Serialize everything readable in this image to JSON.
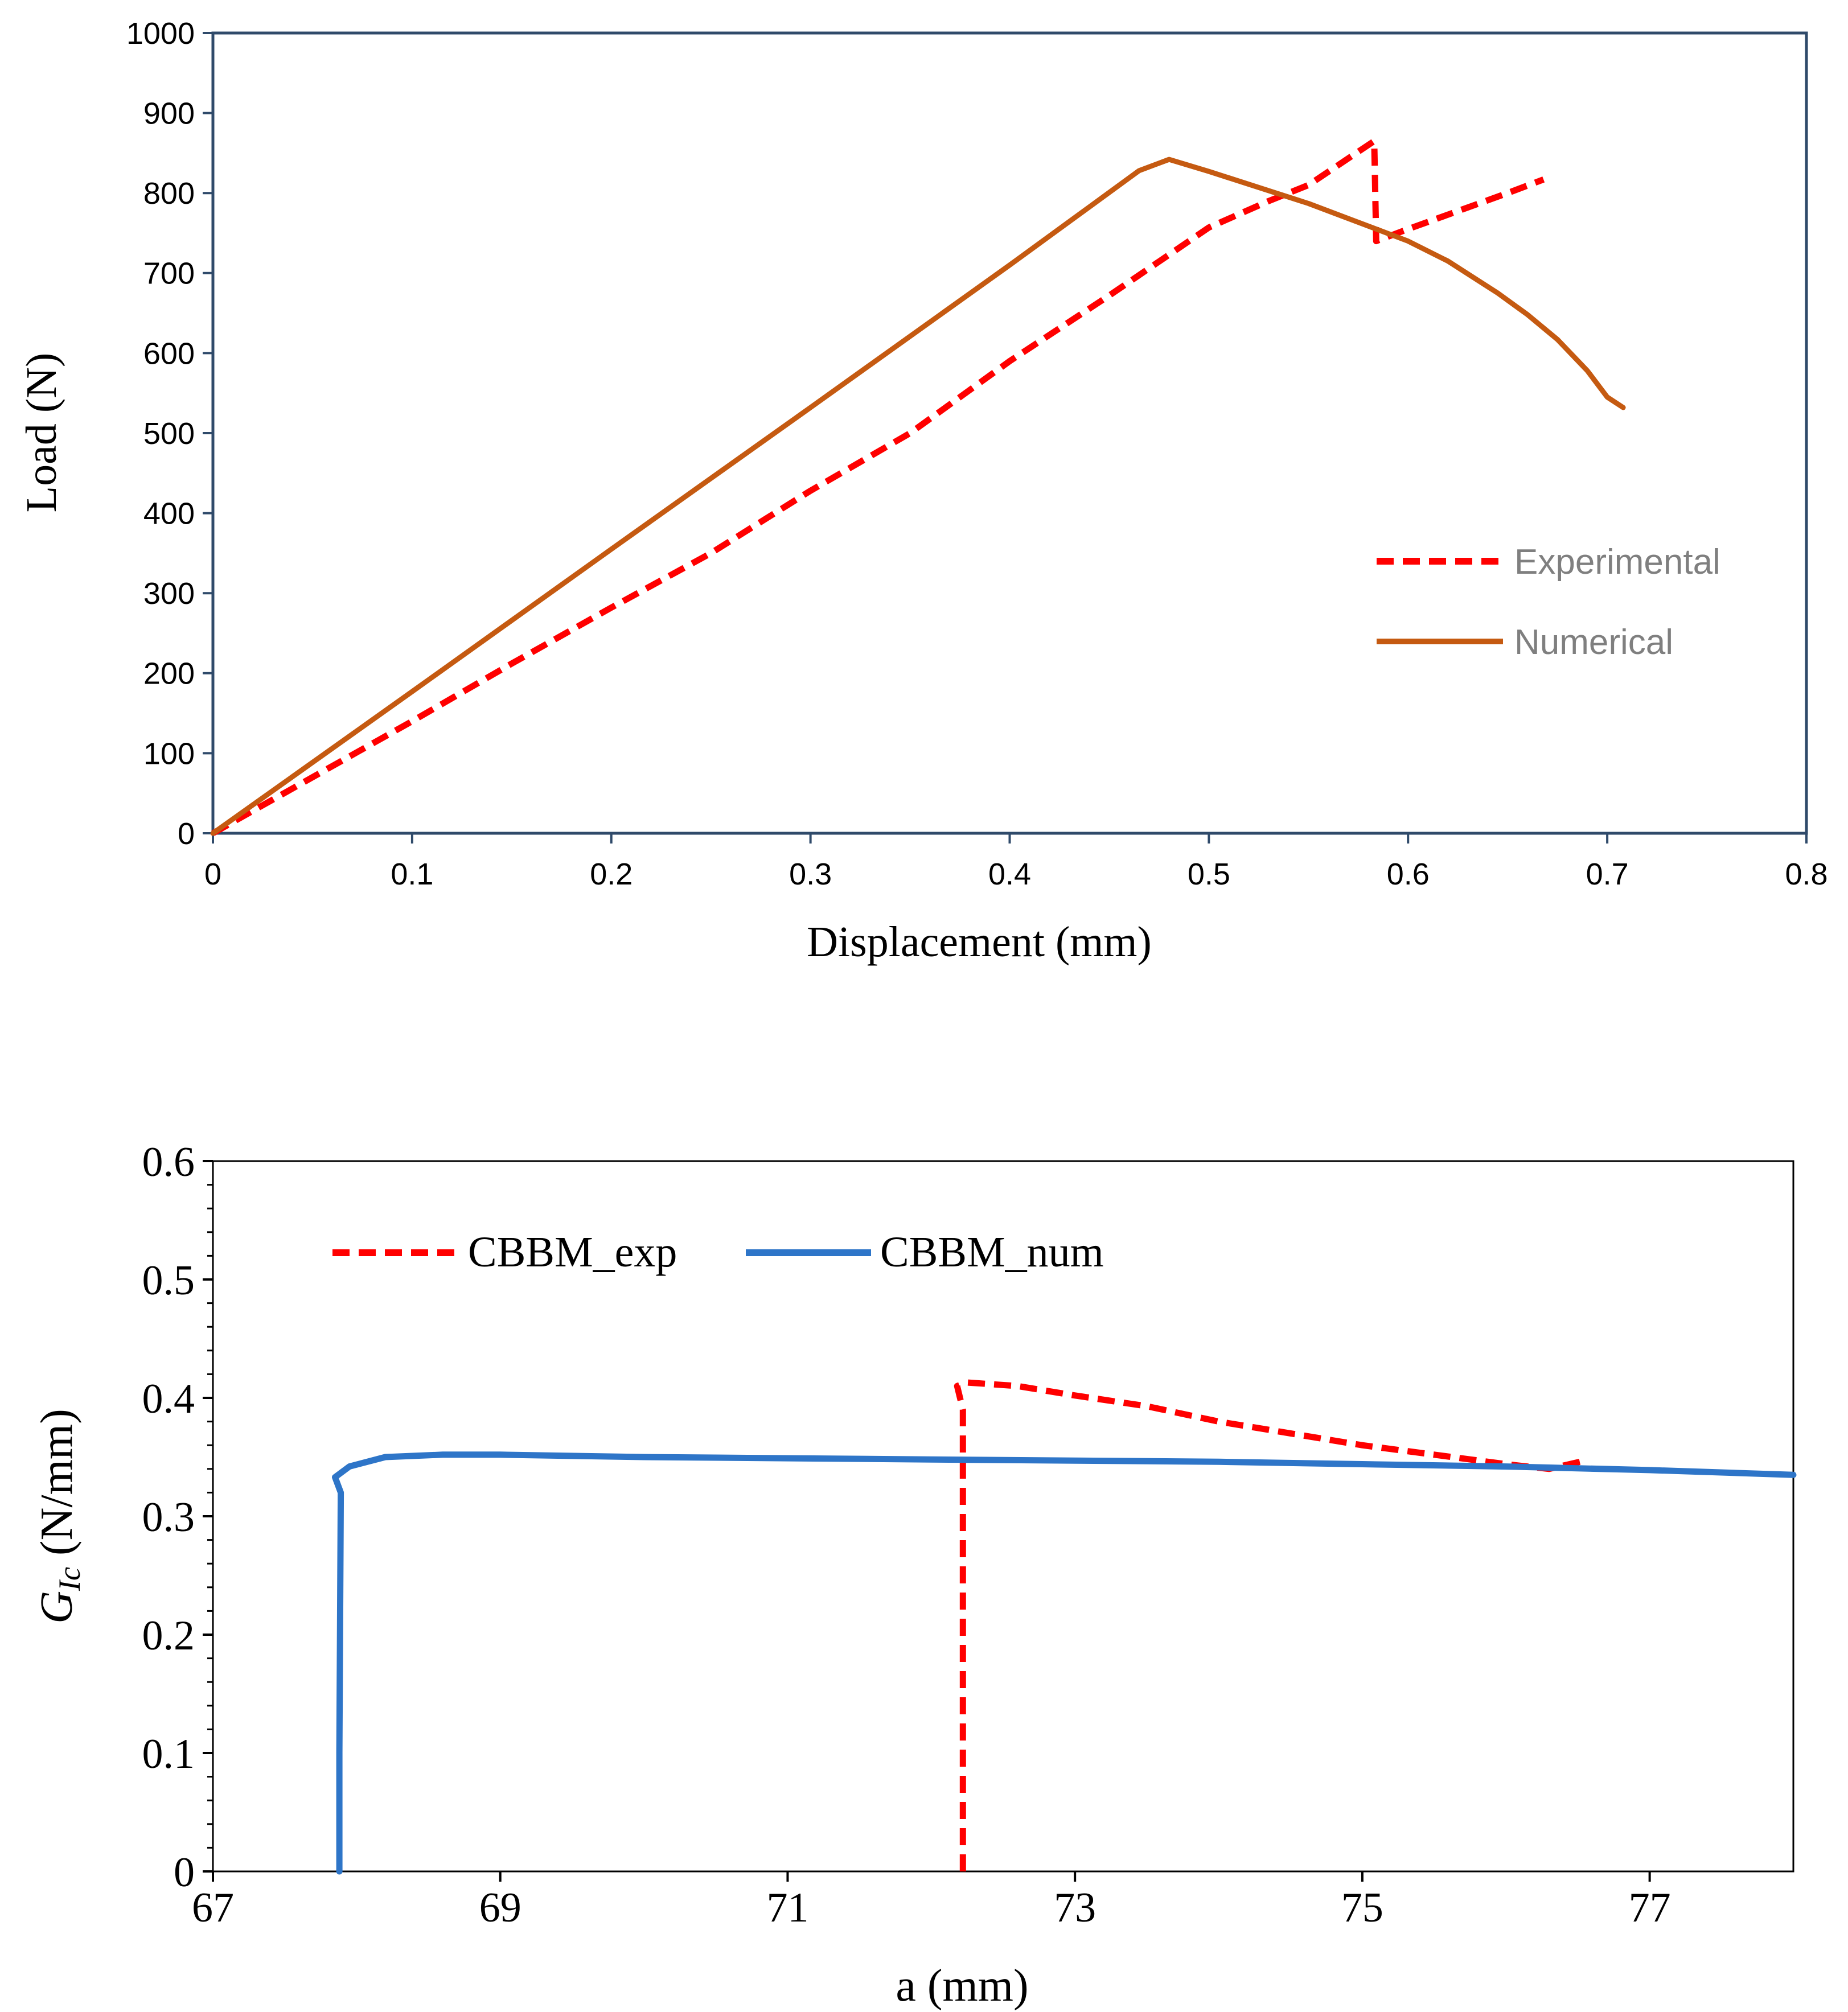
{
  "chart_data": [
    {
      "type": "line",
      "title": "",
      "xlabel": "Displacement (mm)",
      "ylabel": "Load (N)",
      "xlim": [
        0,
        0.8
      ],
      "ylim": [
        0,
        1000
      ],
      "xticks": [
        0,
        0.1,
        0.2,
        0.3,
        0.4,
        0.5,
        0.6,
        0.7,
        0.8
      ],
      "xtick_labels": [
        "0",
        "0.1",
        "0.2",
        "0.3",
        "0.4",
        "0.5",
        "0.6",
        "0.7",
        "0.8"
      ],
      "yticks": [
        0,
        100,
        200,
        300,
        400,
        500,
        600,
        700,
        800,
        900,
        1000
      ],
      "ytick_labels": [
        "0",
        "100",
        "200",
        "300",
        "400",
        "500",
        "600",
        "700",
        "800",
        "900",
        "1000"
      ],
      "grid": false,
      "legend_position": "center-right",
      "series": [
        {
          "name": "Experimental",
          "color": "#ff0000",
          "style": "dashed",
          "points": [
            [
              0,
              0
            ],
            [
              0.05,
              70
            ],
            [
              0.1,
              140
            ],
            [
              0.15,
              212
            ],
            [
              0.2,
              282
            ],
            [
              0.25,
              350
            ],
            [
              0.3,
              428
            ],
            [
              0.35,
              500
            ],
            [
              0.4,
              590
            ],
            [
              0.45,
              672
            ],
            [
              0.5,
              757
            ],
            [
              0.53,
              790
            ],
            [
              0.55,
              810
            ],
            [
              0.583,
              865
            ],
            [
              0.584,
              740
            ],
            [
              0.6,
              755
            ],
            [
              0.65,
              800
            ],
            [
              0.668,
              817
            ]
          ]
        },
        {
          "name": "Numerical",
          "color": "#c55a11",
          "style": "solid",
          "points": [
            [
              0,
              0
            ],
            [
              0.1,
              177
            ],
            [
              0.2,
              355
            ],
            [
              0.3,
              532
            ],
            [
              0.4,
              710
            ],
            [
              0.465,
              828
            ],
            [
              0.48,
              842
            ],
            [
              0.5,
              827
            ],
            [
              0.55,
              787
            ],
            [
              0.6,
              740
            ],
            [
              0.62,
              715
            ],
            [
              0.645,
              675
            ],
            [
              0.66,
              648
            ],
            [
              0.675,
              617
            ],
            [
              0.69,
              578
            ],
            [
              0.7,
              545
            ],
            [
              0.708,
              532
            ]
          ]
        }
      ]
    },
    {
      "type": "line",
      "title": "",
      "xlabel": "a (mm)",
      "ylabel_main": "G",
      "ylabel_sub": "Ic",
      "ylabel_rest": " (N/mm)",
      "xlim": [
        67,
        78
      ],
      "ylim": [
        0,
        0.6
      ],
      "xticks": [
        67,
        69,
        71,
        73,
        75,
        77
      ],
      "xtick_labels": [
        "67",
        "69",
        "71",
        "73",
        "75",
        "77"
      ],
      "yticks": [
        0,
        0.1,
        0.2,
        0.3,
        0.4,
        0.5,
        0.6
      ],
      "ytick_labels": [
        "0",
        "0.1",
        "0.2",
        "0.3",
        "0.4",
        "0.5",
        "0.6"
      ],
      "grid": false,
      "legend_position": "top-left",
      "series": [
        {
          "name": "CBBM_exp",
          "color": "#ff0000",
          "style": "dashed",
          "points": [
            [
              72.22,
              0
            ],
            [
              72.22,
              0.3
            ],
            [
              72.22,
              0.39
            ],
            [
              72.18,
              0.41
            ],
            [
              72.25,
              0.413
            ],
            [
              72.6,
              0.41
            ],
            [
              73,
              0.402
            ],
            [
              73.5,
              0.393
            ],
            [
              74,
              0.38
            ],
            [
              74.5,
              0.37
            ],
            [
              75,
              0.36
            ],
            [
              75.5,
              0.352
            ],
            [
              76,
              0.344
            ],
            [
              76.3,
              0.34
            ],
            [
              76.55,
              0.347
            ]
          ]
        },
        {
          "name": "CBBM_num",
          "color": "#2e75c8",
          "style": "solid",
          "points": [
            [
              67.88,
              0
            ],
            [
              67.88,
              0.1
            ],
            [
              67.89,
              0.32
            ],
            [
              67.85,
              0.333
            ],
            [
              67.95,
              0.342
            ],
            [
              68.2,
              0.35
            ],
            [
              68.6,
              0.352
            ],
            [
              69,
              0.352
            ],
            [
              70,
              0.35
            ],
            [
              71,
              0.349
            ],
            [
              72,
              0.348
            ],
            [
              73,
              0.347
            ],
            [
              74,
              0.346
            ],
            [
              75,
              0.344
            ],
            [
              76,
              0.342
            ],
            [
              77,
              0.339
            ],
            [
              78,
              0.335
            ]
          ]
        }
      ]
    }
  ]
}
